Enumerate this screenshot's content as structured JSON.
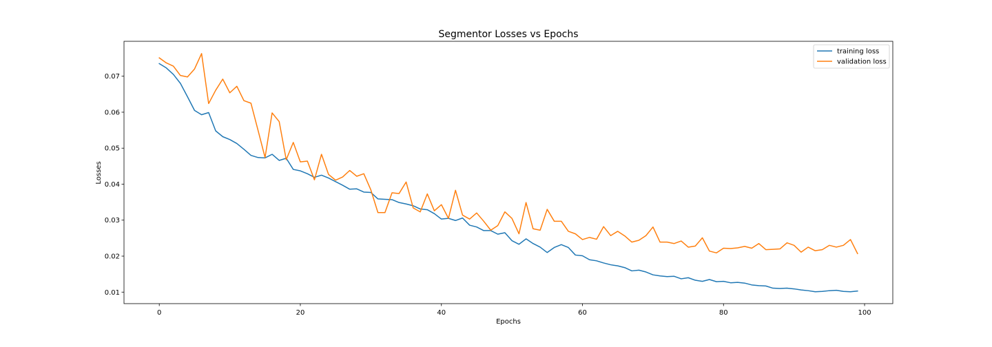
{
  "chart_data": {
    "type": "line",
    "title": "Segmentor Losses vs Epochs",
    "xlabel": "Epochs",
    "ylabel": "Losses",
    "xlim": [
      -5,
      104
    ],
    "ylim": [
      0.0068,
      0.0797
    ],
    "xticks": [
      0,
      20,
      40,
      60,
      80,
      100
    ],
    "yticks": [
      0.01,
      0.02,
      0.03,
      0.04,
      0.05,
      0.06,
      0.07
    ],
    "ytick_labels": [
      "0.01",
      "0.02",
      "0.03",
      "0.04",
      "0.05",
      "0.06",
      "0.07"
    ],
    "xtick_labels": [
      "0",
      "20",
      "40",
      "60",
      "80",
      "100"
    ],
    "grid": false,
    "legend_position": "top-right",
    "x": [
      0,
      1,
      2,
      3,
      4,
      5,
      6,
      7,
      8,
      9,
      10,
      11,
      12,
      13,
      14,
      15,
      16,
      17,
      18,
      19,
      20,
      21,
      22,
      23,
      24,
      25,
      26,
      27,
      28,
      29,
      30,
      31,
      32,
      33,
      34,
      35,
      36,
      37,
      38,
      39,
      40,
      41,
      42,
      43,
      44,
      45,
      46,
      47,
      48,
      49,
      50,
      51,
      52,
      53,
      54,
      55,
      56,
      57,
      58,
      59,
      60,
      61,
      62,
      63,
      64,
      65,
      66,
      67,
      68,
      69,
      70,
      71,
      72,
      73,
      74,
      75,
      76,
      77,
      78,
      79,
      80,
      81,
      82,
      83,
      84,
      85,
      86,
      87,
      88,
      89,
      90,
      91,
      92,
      93,
      94,
      95,
      96,
      97,
      98,
      99
    ],
    "series": [
      {
        "name": "training loss",
        "color": "#1f77b4",
        "values": [
          0.0735,
          0.0723,
          0.0705,
          0.068,
          0.0643,
          0.0605,
          0.0593,
          0.0599,
          0.0548,
          0.0532,
          0.0524,
          0.0513,
          0.0497,
          0.048,
          0.0474,
          0.0473,
          0.0483,
          0.0466,
          0.0472,
          0.0441,
          0.0437,
          0.0429,
          0.0419,
          0.0425,
          0.0417,
          0.0407,
          0.0397,
          0.0386,
          0.0387,
          0.0378,
          0.0377,
          0.0359,
          0.0358,
          0.0357,
          0.0349,
          0.0345,
          0.034,
          0.0331,
          0.0329,
          0.0318,
          0.0303,
          0.0305,
          0.0299,
          0.0306,
          0.0286,
          0.0281,
          0.0271,
          0.0271,
          0.0261,
          0.0265,
          0.0243,
          0.0233,
          0.0248,
          0.0235,
          0.0225,
          0.021,
          0.0224,
          0.0232,
          0.0224,
          0.0203,
          0.0201,
          0.019,
          0.0187,
          0.0181,
          0.0176,
          0.0173,
          0.0168,
          0.0159,
          0.0161,
          0.0156,
          0.0148,
          0.0145,
          0.0143,
          0.0144,
          0.0137,
          0.014,
          0.0133,
          0.013,
          0.0135,
          0.0129,
          0.013,
          0.0126,
          0.0127,
          0.0125,
          0.012,
          0.0118,
          0.0117,
          0.0111,
          0.011,
          0.0111,
          0.0109,
          0.0106,
          0.0104,
          0.0101,
          0.0102,
          0.0104,
          0.0105,
          0.0102,
          0.0101,
          0.0103
        ]
      },
      {
        "name": "validation loss",
        "color": "#ff7f0e",
        "values": [
          0.0751,
          0.0737,
          0.0728,
          0.0702,
          0.0698,
          0.072,
          0.0763,
          0.0624,
          0.0661,
          0.0692,
          0.0654,
          0.0672,
          0.0632,
          0.0625,
          0.055,
          0.0474,
          0.0598,
          0.0574,
          0.0468,
          0.0516,
          0.0462,
          0.0464,
          0.0412,
          0.0483,
          0.0427,
          0.0411,
          0.042,
          0.0438,
          0.0422,
          0.0429,
          0.0384,
          0.0321,
          0.0321,
          0.0376,
          0.0374,
          0.0406,
          0.0334,
          0.0323,
          0.0373,
          0.0326,
          0.0343,
          0.0305,
          0.0383,
          0.0314,
          0.0303,
          0.032,
          0.0297,
          0.0272,
          0.0285,
          0.0323,
          0.0305,
          0.0262,
          0.0349,
          0.0276,
          0.0272,
          0.033,
          0.0297,
          0.0297,
          0.0269,
          0.0262,
          0.0246,
          0.0252,
          0.0247,
          0.0282,
          0.0257,
          0.0269,
          0.0256,
          0.0239,
          0.0244,
          0.0257,
          0.0281,
          0.0239,
          0.0239,
          0.0235,
          0.0242,
          0.0225,
          0.0228,
          0.0251,
          0.0214,
          0.0209,
          0.0222,
          0.0221,
          0.0223,
          0.0227,
          0.0222,
          0.0235,
          0.0218,
          0.0219,
          0.022,
          0.0237,
          0.023,
          0.0211,
          0.0225,
          0.0215,
          0.0218,
          0.023,
          0.0225,
          0.023,
          0.0246,
          0.0207
        ]
      }
    ]
  }
}
